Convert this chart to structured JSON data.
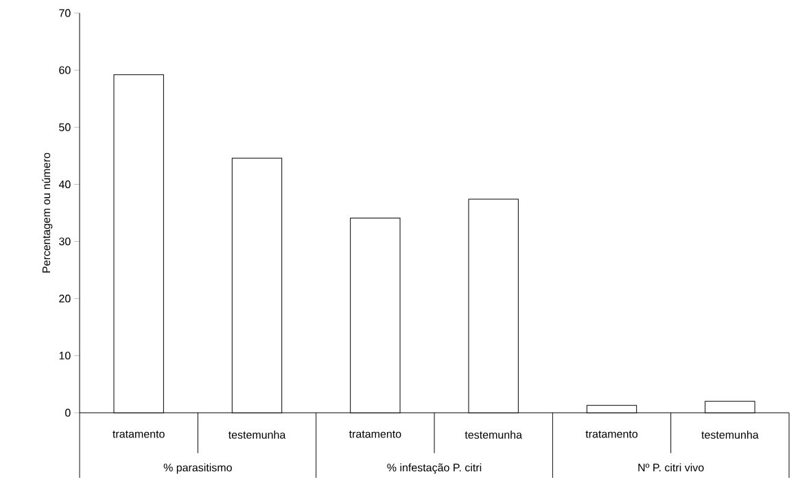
{
  "chart_data": {
    "type": "bar",
    "ylabel": "Percentagem ou número",
    "categories": [
      "tratamento",
      "testemunha",
      "tratamento",
      "testemunha",
      "tratamento",
      "testemunha"
    ],
    "values": [
      59.2,
      44.6,
      34.1,
      37.4,
      1.3,
      2.0
    ],
    "color": "#ffffff",
    "ylim": [
      0,
      70
    ],
    "yticks": [
      0,
      10,
      20,
      30,
      40,
      50,
      60,
      70
    ],
    "grid": false,
    "annotations": [
      "% parasitismo",
      "% infestação P. citri",
      "Nº P. citri vivo"
    ]
  }
}
